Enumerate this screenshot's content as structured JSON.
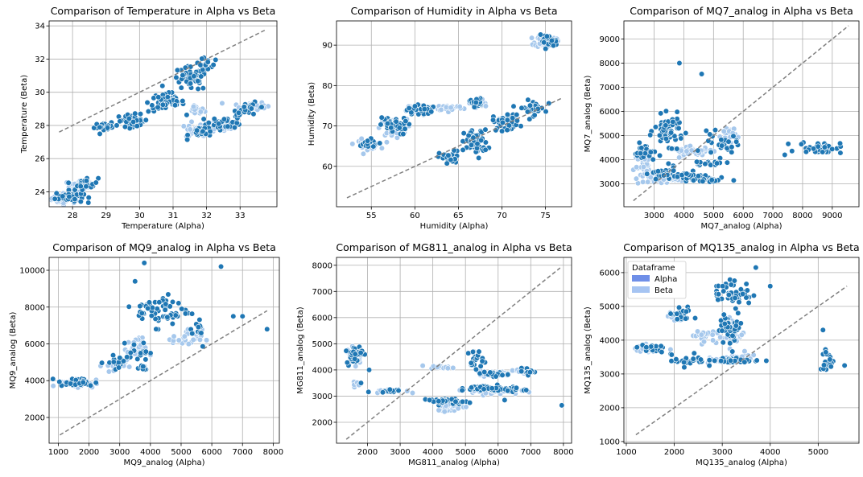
{
  "colors": {
    "alpha": "#1f77b4",
    "beta": "#a6c8ec",
    "alpha_legend": "#6f8fe8",
    "beta_legend": "#a6c4f2",
    "reference": "#808080"
  },
  "legend": {
    "title": "Dataframe",
    "entries": [
      "Alpha",
      "Beta"
    ]
  },
  "chart_data": [
    {
      "type": "scatter",
      "title": "Comparison of Temperature in Alpha vs Beta",
      "xlabel": "Temperature (Alpha)",
      "ylabel": "Temperature (Beta)",
      "xlim": [
        27.3,
        34.1
      ],
      "ylim": [
        23.1,
        34.3
      ],
      "xticks": [
        28,
        29,
        30,
        31,
        32,
        33
      ],
      "yticks": [
        24,
        26,
        28,
        30,
        32,
        34
      ],
      "reference_line": [
        [
          27.6,
          27.6
        ],
        [
          33.8,
          33.8
        ]
      ],
      "grid": true,
      "series": [
        {
          "role": "beta",
          "clusters": [
            [
              27.8,
              23.6,
              0.35,
              0.25,
              40
            ],
            [
              28.2,
              24.3,
              0.3,
              0.35,
              30
            ],
            [
              31.7,
              28.9,
              0.2,
              0.2,
              25
            ],
            [
              31.8,
              27.7,
              0.35,
              0.4,
              35
            ],
            [
              32.5,
              28.0,
              0.5,
              0.3,
              30
            ],
            [
              33.3,
              29.2,
              0.4,
              0.2,
              30
            ]
          ]
        },
        {
          "role": "alpha",
          "clusters": [
            [
              27.9,
              23.7,
              0.35,
              0.3,
              35
            ],
            [
              28.4,
              24.5,
              0.3,
              0.3,
              25
            ],
            [
              29.0,
              27.9,
              0.3,
              0.2,
              20
            ],
            [
              29.8,
              28.3,
              0.4,
              0.3,
              40
            ],
            [
              30.8,
              29.4,
              0.45,
              0.5,
              60
            ],
            [
              31.5,
              30.8,
              0.45,
              0.6,
              45
            ],
            [
              32.0,
              31.7,
              0.3,
              0.3,
              15
            ],
            [
              31.9,
              27.6,
              0.35,
              0.3,
              25
            ],
            [
              32.6,
              28.2,
              0.4,
              0.3,
              30
            ],
            [
              33.3,
              29.0,
              0.4,
              0.3,
              25
            ]
          ]
        }
      ]
    },
    {
      "type": "scatter",
      "title": "Comparison of Humidity in Alpha vs Beta",
      "xlabel": "Humidity (Alpha)",
      "ylabel": "Humidity (Beta)",
      "xlim": [
        51.0,
        78.0
      ],
      "ylim": [
        50.0,
        96.0
      ],
      "xticks": [
        55,
        60,
        65,
        70,
        75
      ],
      "yticks": [
        60,
        70,
        80,
        90
      ],
      "reference_line": [
        [
          52.2,
          52.2
        ],
        [
          77.0,
          77.0
        ]
      ],
      "grid": true,
      "series": [
        {
          "role": "beta",
          "clusters": [
            [
              54.5,
              65.5,
              1.2,
              1.0,
              35
            ],
            [
              57.5,
              69.5,
              1.3,
              1.8,
              50
            ],
            [
              60.5,
              74.0,
              1.2,
              1.2,
              40
            ],
            [
              64.0,
              74.5,
              1.3,
              0.6,
              30
            ],
            [
              67.5,
              75.5,
              0.7,
              1.0,
              25
            ],
            [
              75.0,
              91.0,
              1.0,
              1.2,
              45
            ]
          ]
        },
        {
          "role": "alpha",
          "clusters": [
            [
              54.5,
              65.5,
              1.2,
              1.0,
              25
            ],
            [
              57.5,
              70.0,
              1.3,
              1.8,
              35
            ],
            [
              60.5,
              74.0,
              1.2,
              1.2,
              25
            ],
            [
              67.0,
              76.0,
              0.6,
              1.0,
              15
            ],
            [
              64.0,
              62.0,
              1.0,
              1.5,
              30
            ],
            [
              67.0,
              66.0,
              1.1,
              2.5,
              60
            ],
            [
              70.5,
              71.0,
              1.3,
              1.8,
              45
            ],
            [
              73.5,
              74.5,
              1.2,
              1.5,
              35
            ],
            [
              75.3,
              91.0,
              0.9,
              1.2,
              25
            ]
          ]
        }
      ]
    },
    {
      "type": "scatter",
      "title": "Comparison of MQ7_analog in Alpha vs Beta",
      "xlabel": "MQ7_analog (Alpha)",
      "ylabel": "MQ7_analog (Beta)",
      "xlim": [
        1980,
        9900
      ],
      "ylim": [
        2050,
        9750
      ],
      "xticks": [
        3000,
        4000,
        5000,
        6000,
        7000,
        8000,
        9000
      ],
      "yticks": [
        3000,
        4000,
        5000,
        6000,
        7000,
        8000,
        9000
      ],
      "reference_line": [
        [
          2300,
          2300
        ],
        [
          9550,
          9550
        ]
      ],
      "grid": true,
      "series": [
        {
          "role": "beta",
          "clusters": [
            [
              2700,
              3700,
              300,
              400,
              35
            ],
            [
              3300,
              3200,
              400,
              120,
              35
            ],
            [
              4300,
              4350,
              600,
              150,
              40
            ],
            [
              5500,
              5000,
              200,
              350,
              30
            ],
            [
              3800,
              3250,
              400,
              100,
              25
            ]
          ]
        },
        {
          "role": "alpha",
          "clusters": [
            [
              2700,
              4300,
              300,
              300,
              25
            ],
            [
              3500,
              5200,
              400,
              500,
              60
            ],
            [
              3300,
              3400,
              350,
              250,
              30
            ],
            [
              4200,
              3300,
              600,
              150,
              30
            ],
            [
              5000,
              3150,
              500,
              80,
              20
            ],
            [
              5200,
              4600,
              500,
              400,
              25
            ],
            [
              4800,
              3850,
              500,
              60,
              15
            ],
            [
              8600,
              4500,
              600,
              200,
              40
            ]
          ],
          "points": [
            [
              3850,
              8000
            ],
            [
              4600,
              7550
            ],
            [
              7400,
              4200
            ]
          ]
        }
      ]
    },
    {
      "type": "scatter",
      "title": "Comparison of MQ9_analog in Alpha vs Beta",
      "xlabel": "MQ9_analog (Alpha)",
      "ylabel": "MQ9_analog (Beta)",
      "xlim": [
        700,
        8200
      ],
      "ylim": [
        600,
        10700
      ],
      "xticks": [
        1000,
        2000,
        3000,
        4000,
        5000,
        6000,
        7000,
        8000
      ],
      "yticks": [
        2000,
        4000,
        6000,
        8000,
        10000
      ],
      "reference_line": [
        [
          1050,
          1050
        ],
        [
          7800,
          7800
        ]
      ],
      "grid": true,
      "series": [
        {
          "role": "beta",
          "clusters": [
            [
              1600,
              3900,
              500,
              200,
              50
            ],
            [
              2800,
              4800,
              300,
              300,
              20
            ],
            [
              3500,
              5700,
              300,
              500,
              35
            ],
            [
              5200,
              6300,
              400,
              400,
              25
            ]
          ]
        },
        {
          "role": "alpha",
          "clusters": [
            [
              1600,
              3900,
              500,
              200,
              35
            ],
            [
              3000,
              5000,
              400,
              300,
              15
            ],
            [
              3600,
              5600,
              300,
              400,
              20
            ],
            [
              4400,
              7800,
              700,
              700,
              60
            ],
            [
              3700,
              4700,
              200,
              150,
              10
            ],
            [
              5500,
              7000,
              300,
              1000,
              12
            ]
          ],
          "points": [
            [
              3800,
              10400
            ],
            [
              6300,
              10200
            ],
            [
              7000,
              7500
            ],
            [
              6700,
              7500
            ],
            [
              7800,
              6800
            ],
            [
              3500,
              9400
            ]
          ]
        }
      ]
    },
    {
      "type": "scatter",
      "title": "Comparison of MG811_analog in Alpha vs Beta",
      "xlabel": "MG811_analog (Alpha)",
      "ylabel": "MG811_analog (Beta)",
      "xlim": [
        1050,
        8250
      ],
      "ylim": [
        1200,
        8300
      ],
      "xticks": [
        2000,
        3000,
        4000,
        5000,
        6000,
        7000,
        8000
      ],
      "yticks": [
        2000,
        3000,
        4000,
        5000,
        6000,
        7000,
        8000
      ],
      "reference_line": [
        [
          1350,
          1350
        ],
        [
          7900,
          7900
        ]
      ],
      "grid": true,
      "series": [
        {
          "role": "beta",
          "clusters": [
            [
              1600,
              4600,
              200,
              300,
              35
            ],
            [
              1700,
              3450,
              100,
              80,
              10
            ],
            [
              2700,
              3200,
              400,
              60,
              20
            ],
            [
              4300,
              4100,
              300,
              50,
              20
            ],
            [
              4600,
              2600,
              400,
              150,
              40
            ],
            [
              5800,
              3200,
              700,
              100,
              40
            ],
            [
              5800,
              3850,
              500,
              80,
              25
            ],
            [
              6700,
              3950,
              300,
              100,
              15
            ]
          ]
        },
        {
          "role": "alpha",
          "clusters": [
            [
              1600,
              4600,
              200,
              300,
              40
            ],
            [
              2700,
              3200,
              400,
              50,
              10
            ],
            [
              4500,
              2800,
              500,
              80,
              35
            ],
            [
              5500,
              3300,
              500,
              80,
              35
            ],
            [
              6300,
              3250,
              500,
              80,
              25
            ],
            [
              5300,
              4400,
              200,
              300,
              20
            ],
            [
              5800,
              3850,
              400,
              80,
              20
            ],
            [
              6900,
              3950,
              200,
              100,
              15
            ]
          ],
          "points": [
            [
              1800,
              3500
            ],
            [
              2050,
              4000
            ],
            [
              7950,
              2650
            ],
            [
              3900,
              2850
            ],
            [
              6200,
              2850
            ]
          ]
        }
      ]
    },
    {
      "type": "scatter",
      "title": "Comparison of MQ135_analog in Alpha vs Beta",
      "xlabel": "MQ135_analog (Alpha)",
      "ylabel": "MQ135_analog (Beta)",
      "xlim": [
        950,
        5850
      ],
      "ylim": [
        950,
        6450
      ],
      "xticks": [
        1000,
        2000,
        3000,
        4000,
        5000
      ],
      "yticks": [
        1000,
        2000,
        3000,
        4000,
        5000,
        6000
      ],
      "reference_line": [
        [
          1200,
          1200
        ],
        [
          5600,
          5600
        ]
      ],
      "grid": true,
      "legend_position": "top-left",
      "series": [
        {
          "role": "beta",
          "clusters": [
            [
              1500,
              3750,
              250,
              100,
              30
            ],
            [
              2050,
              4700,
              150,
              150,
              20
            ],
            [
              2600,
              4150,
              200,
              150,
              25
            ],
            [
              3200,
              4300,
              200,
              400,
              40
            ],
            [
              2900,
              3400,
              400,
              60,
              25
            ],
            [
              3400,
              3500,
              300,
              80,
              20
            ]
          ]
        },
        {
          "role": "alpha",
          "clusters": [
            [
              1500,
              3750,
              250,
              100,
              20
            ],
            [
              2150,
              4750,
              200,
              200,
              25
            ],
            [
              2300,
              3400,
              300,
              150,
              25
            ],
            [
              3200,
              5400,
              350,
              300,
              50
            ],
            [
              3200,
              4400,
              200,
              400,
              40
            ],
            [
              3300,
              3400,
              400,
              60,
              35
            ],
            [
              5200,
              3400,
              150,
              250,
              20
            ]
          ],
          "points": [
            [
              4000,
              5600
            ],
            [
              3700,
              6150
            ],
            [
              5550,
              3250
            ],
            [
              5100,
              4300
            ]
          ]
        }
      ]
    }
  ]
}
